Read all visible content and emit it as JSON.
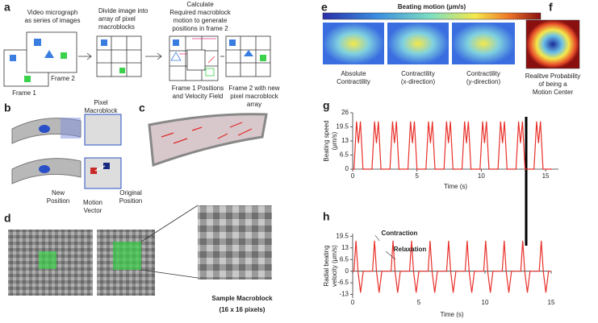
{
  "panel_labels": [
    "a",
    "b",
    "c",
    "d",
    "e",
    "f",
    "g",
    "h"
  ],
  "panel_a": {
    "step1": [
      "Video micrograph",
      "as series of images"
    ],
    "frame2": "Frame 2",
    "frame1": "Frame 1",
    "step2": [
      "Divide image into",
      "array of pixel",
      "macroblocks"
    ],
    "step3": [
      "Calculate",
      "Required macroblock",
      "motion to generate",
      "positions in frame 2"
    ],
    "caption3": [
      "Frame 1 Positions",
      "and Velocity Field"
    ],
    "caption4": [
      "Frame 2 with new",
      "pixel macroblock",
      "array"
    ]
  },
  "panel_b": {
    "macroblock": [
      "Pixel",
      "Macroblock"
    ],
    "new_position": [
      "New",
      "Position"
    ],
    "motion_vector": [
      "Motion",
      "Vector"
    ],
    "original_position": [
      "Original",
      "Position"
    ]
  },
  "panel_d": {
    "title": "Sample Macroblock",
    "subtitle": "(16 x 16 pixels)"
  },
  "panel_e": {
    "title": "Beating motion (μm/s)",
    "labels": [
      [
        "Absolute",
        "Contractility"
      ],
      [
        "Contractility",
        "(x-direction)"
      ],
      [
        "Contractility",
        "(y-direction)"
      ]
    ]
  },
  "panel_f": {
    "caption": [
      "Realitve Probability",
      "of being a",
      "Motion Center"
    ]
  },
  "chart_data": [
    {
      "type": "line",
      "x_label": "Time (s)",
      "y_label": [
        "Beating speed",
        "(μm/s)"
      ],
      "color": "#e8302a",
      "xlim": [
        0,
        16
      ],
      "xticks": [
        0,
        5,
        10,
        15
      ],
      "ylim": [
        0,
        26
      ],
      "yticks": [
        0,
        6.5,
        13,
        19.5,
        26
      ],
      "x": [
        0,
        0.1,
        0.3,
        0.45,
        0.6,
        0.8,
        1.5,
        1.7,
        1.85,
        2.0,
        2.2,
        2.9,
        3.1,
        3.25,
        3.4,
        3.6,
        4.3,
        4.5,
        4.65,
        4.8,
        5.0,
        5.7,
        5.9,
        6.05,
        6.2,
        6.4,
        7.1,
        7.3,
        7.45,
        7.6,
        7.8,
        8.5,
        8.7,
        8.85,
        9.0,
        9.2,
        9.9,
        10.1,
        10.25,
        10.4,
        10.6,
        11.3,
        11.5,
        11.65,
        11.8,
        12.0,
        12.7,
        12.9,
        13.05,
        13.2,
        13.4,
        14.1,
        14.3,
        14.45,
        14.6,
        14.8,
        15.5
      ],
      "values": [
        0,
        0,
        22,
        12,
        22,
        0,
        0,
        22,
        12,
        22,
        0,
        0,
        22,
        12,
        22,
        0,
        0,
        22,
        12,
        22,
        0,
        0,
        22,
        12,
        22,
        0,
        0,
        22,
        12,
        22,
        0,
        0,
        22,
        12,
        22,
        0,
        0,
        22,
        12,
        22,
        0,
        0,
        22,
        12,
        22,
        0,
        0,
        22,
        12,
        22,
        0,
        0,
        22,
        12,
        22,
        0,
        0
      ]
    },
    {
      "type": "line",
      "x_label": "Time (s)",
      "y_label": [
        "Radial beating",
        "velocity (μm/s)"
      ],
      "color": "#e8302a",
      "annotations": [
        "Contraction",
        "Relaxation"
      ],
      "xlim": [
        0,
        15
      ],
      "xticks": [
        0,
        5,
        10,
        15
      ],
      "ylim": [
        -15,
        21
      ],
      "yticks": [
        -13,
        -6.5,
        0,
        6.5,
        13,
        19.5
      ],
      "x": [
        0,
        0.1,
        0.25,
        0.4,
        0.6,
        0.8,
        1.5,
        1.65,
        1.8,
        2.0,
        2.2,
        2.9,
        3.05,
        3.2,
        3.4,
        3.6,
        4.3,
        4.45,
        4.6,
        4.8,
        5.0,
        5.7,
        5.85,
        6.0,
        6.2,
        6.4,
        7.1,
        7.25,
        7.4,
        7.6,
        7.8,
        8.5,
        8.65,
        8.8,
        9.0,
        9.2,
        9.9,
        10.05,
        10.2,
        10.4,
        10.6,
        11.3,
        11.45,
        11.6,
        11.8,
        12.0,
        12.7,
        12.85,
        13.0,
        13.2,
        13.4,
        14.1,
        14.25,
        14.4,
        14.6,
        14.8,
        15.0
      ],
      "values": [
        0,
        0,
        17,
        0,
        -12,
        0,
        0,
        17,
        0,
        -12,
        0,
        0,
        17,
        0,
        -12,
        0,
        0,
        17,
        0,
        -12,
        0,
        0,
        17,
        0,
        -12,
        0,
        0,
        17,
        0,
        -12,
        0,
        0,
        17,
        0,
        -12,
        0,
        0,
        17,
        0,
        -12,
        0,
        0,
        17,
        0,
        -12,
        0,
        0,
        17,
        0,
        -12,
        0,
        0,
        17,
        0,
        -12,
        0,
        0
      ]
    }
  ]
}
